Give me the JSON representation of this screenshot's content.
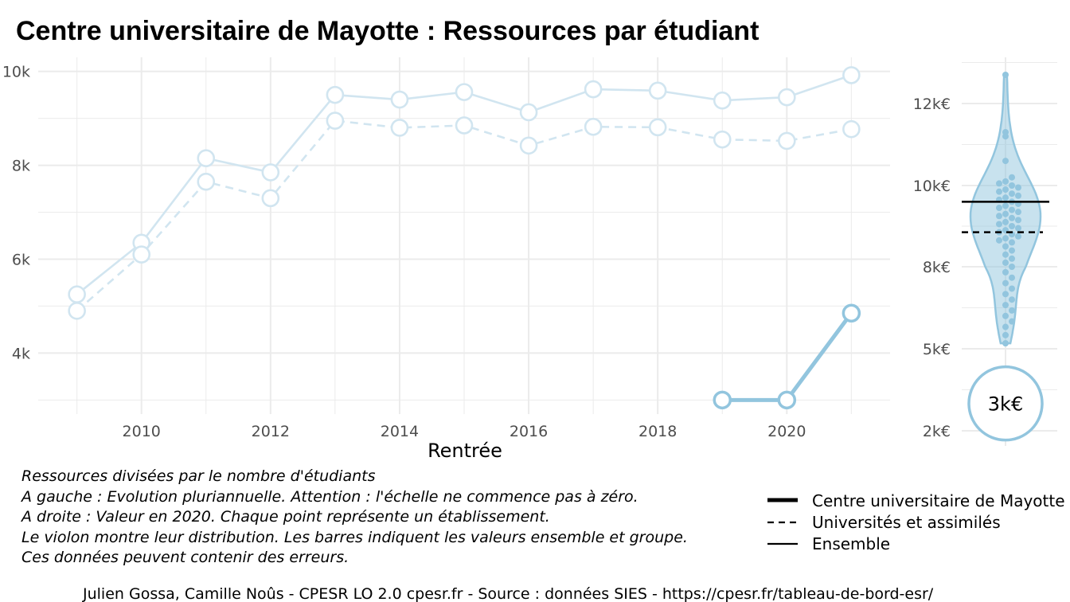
{
  "title": "Centre universitaire de Mayotte  :  Ressources par étudiant",
  "colors": {
    "series": "#92c5de",
    "series_light": "#d1e5f0",
    "grid": "#ebebeb",
    "ref_line": "#000000"
  },
  "chart_data": [
    {
      "type": "line",
      "xlabel": "Rentrée",
      "ylabel": "",
      "x_ticks": [
        2010,
        2012,
        2014,
        2016,
        2018,
        2020
      ],
      "y_ticks": [
        4000,
        6000,
        8000,
        10000
      ],
      "y_tick_labels": [
        "4k",
        "6k",
        "8k",
        "10k"
      ],
      "xlim": [
        2008.4,
        2021.6
      ],
      "ylim": [
        2700,
        10300
      ],
      "grid": true,
      "series": [
        {
          "style": "solid-faded",
          "x": [
            2009,
            2010,
            2011,
            2012,
            2013,
            2014,
            2015,
            2016,
            2017,
            2018,
            2019,
            2020,
            2021
          ],
          "values": [
            5250,
            6350,
            8150,
            7850,
            9500,
            9400,
            9560,
            9130,
            9620,
            9590,
            9380,
            9450,
            9920
          ]
        },
        {
          "style": "dashed-faded",
          "x": [
            2009,
            2010,
            2011,
            2012,
            2013,
            2014,
            2015,
            2016,
            2017,
            2018,
            2019,
            2020,
            2021
          ],
          "values": [
            4900,
            6100,
            7650,
            7300,
            8950,
            8800,
            8850,
            8420,
            8820,
            8810,
            8550,
            8520,
            8770
          ]
        },
        {
          "style": "solid-bold",
          "x": [
            2019,
            2020,
            2021
          ],
          "values": [
            3000,
            3000,
            4850
          ]
        }
      ]
    },
    {
      "type": "violin",
      "y_ticks": [
        2000,
        5000,
        8000,
        10000,
        12000
      ],
      "y_tick_labels": [
        "2k€",
        "5k€",
        "8k€",
        "10k€",
        "12k€"
      ],
      "ref_lines": {
        "solid": 9600,
        "dashed": 8850
      },
      "highlight_value": 3000,
      "highlight_label": "3k€",
      "points": [
        12700,
        11300,
        11200,
        10600,
        10200,
        10100,
        10050,
        10000,
        9950,
        9900,
        9850,
        9800,
        9750,
        9700,
        9650,
        9600,
        9550,
        9500,
        9450,
        9400,
        9350,
        9300,
        9250,
        9200,
        9150,
        9100,
        9050,
        9000,
        8950,
        8900,
        8850,
        8800,
        8750,
        8700,
        8650,
        8600,
        8500,
        8400,
        8300,
        8200,
        8100,
        8000,
        7800,
        7600,
        7400,
        7200,
        7000,
        6800,
        6600,
        6400,
        6200,
        6000,
        5800,
        5500,
        5200
      ]
    }
  ],
  "caption_lines": [
    "Ressources divisées par le nombre d'étudiants",
    "A gauche : Evolution pluriannuelle. Attention : l'échelle ne commence pas à zéro.",
    "A droite : Valeur en 2020. Chaque point représente un établissement.",
    "Le violon montre leur distribution. Les barres indiquent les valeurs ensemble et groupe.",
    "Ces données peuvent contenir des erreurs."
  ],
  "legend": [
    {
      "label": "Centre universitaire de Mayotte",
      "style": "bold"
    },
    {
      "label": "Universités et assimilés",
      "style": "dashed"
    },
    {
      "label": "Ensemble",
      "style": "solid"
    }
  ],
  "source": "Julien Gossa, Camille Noûs - CPESR LO 2.0 cpesr.fr - Source : données SIES - https://cpesr.fr/tableau-de-bord-esr/"
}
